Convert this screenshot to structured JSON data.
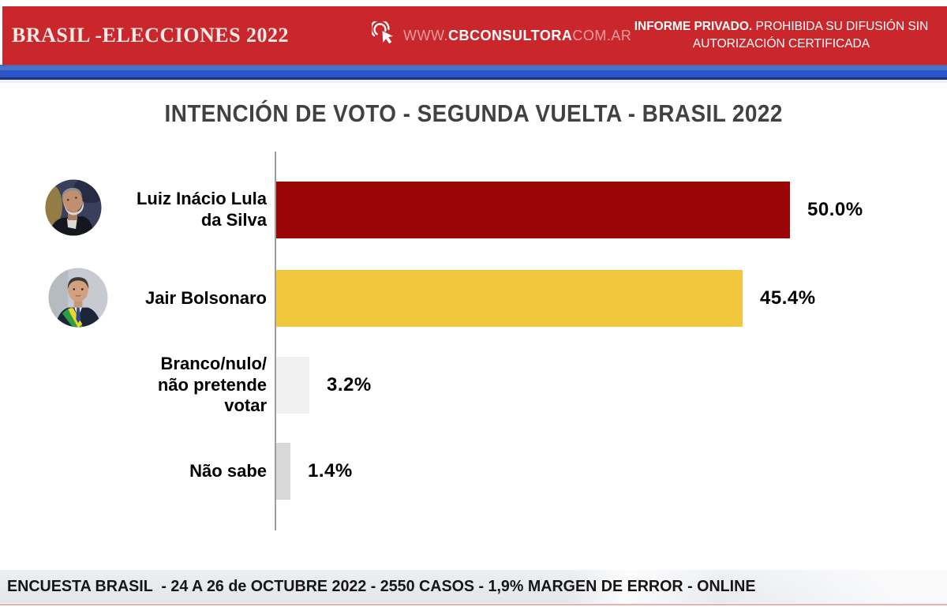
{
  "header": {
    "brand": "BRASIL -ELECCIONES 2022",
    "website_prefix": "WWW.",
    "website_bold": "CBCONSULTORA",
    "website_suffix": "COM.AR",
    "notice_bold": "INFORME PRIVADO.",
    "notice_rest": " PROHIBIDA SU DIFUSIÓN SIN AUTORIZACIÓN CERTIFICADA"
  },
  "chart_data": {
    "type": "bar",
    "orientation": "horizontal",
    "title": "INTENCIÓN DE VOTO - SEGUNDA VUELTA - BRASIL 2022",
    "categories": [
      "Luiz Inácio Lula\nda Silva",
      "Jair Bolsonaro",
      "Branco/nulo/\nnão pretende\nvotar",
      "Não sabe"
    ],
    "values": [
      50.0,
      45.4,
      3.2,
      1.4
    ],
    "value_labels": [
      "50.0%",
      "45.4%",
      "3.2%",
      "1.4%"
    ],
    "colors": [
      "#9A0506",
      "#F1C83D",
      "#F1F1F1",
      "#D8D8D8"
    ],
    "unit": "%",
    "xlim": [
      0,
      62
    ],
    "gridlines": false,
    "legend": "none",
    "avatars": [
      "lula-photo",
      "bolsonaro-photo",
      null,
      null
    ]
  },
  "footer": {
    "text": "ENCUESTA BRASIL  - 24 A 26 de OCTUBRE 2022 - 2550 CASOS - 1,9% MARGEN DE ERROR - ONLINE"
  },
  "theme": {
    "header_red": "#C9272C",
    "stripe_blue_light": "#4B70C9",
    "stripe_blue": "#2A55CB",
    "stripe_navy": "#22307A",
    "footer_line_pink": "#F0AFAC"
  }
}
